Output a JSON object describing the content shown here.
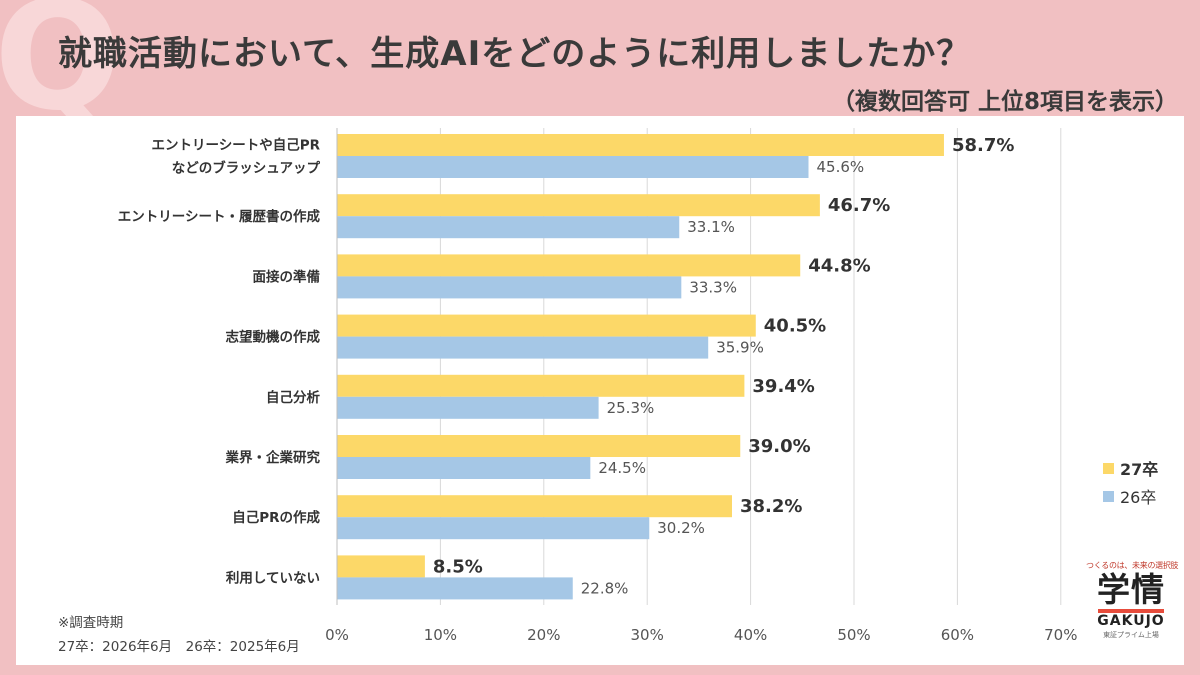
{
  "header": {
    "q_mark": "Q",
    "title": "就職活動において、生成AIをどのように利用しましたか？",
    "subtitle": "（複数回答可 上位8項目を表示）"
  },
  "colors": {
    "series1": "#fcd868",
    "series2": "#a5c7e6",
    "grid": "#d9d9d9",
    "accent": "#e74c3c"
  },
  "chart_data": {
    "type": "bar",
    "orientation": "horizontal",
    "categories": [
      [
        "エントリーシートや自己PR",
        "などのブラッシュアップ"
      ],
      [
        "エントリーシート・履歴書の作成"
      ],
      [
        "面接の準備"
      ],
      [
        "志望動機の作成"
      ],
      [
        "自己分析"
      ],
      [
        "業界・企業研究"
      ],
      [
        "自己PRの作成"
      ],
      [
        "利用していない"
      ]
    ],
    "series": [
      {
        "name": "27卒",
        "values": [
          58.7,
          46.7,
          44.8,
          40.5,
          39.4,
          39.0,
          38.2,
          8.5
        ],
        "color": "#fcd868"
      },
      {
        "name": "26卒",
        "values": [
          45.6,
          33.1,
          33.3,
          35.9,
          25.3,
          24.5,
          30.2,
          22.8
        ],
        "color": "#a5c7e6"
      }
    ],
    "xlim": [
      0,
      70
    ],
    "xticks": [
      "0%",
      "10%",
      "20%",
      "30%",
      "40%",
      "50%",
      "60%",
      "70%"
    ],
    "value_suffix": "%",
    "grid": true,
    "legend": "right"
  },
  "footnote": {
    "line1": "※調査時期",
    "line2": "27卒：2026年6月　26卒：2025年6月"
  },
  "logo": {
    "tagline": "つくるのは、未来の選択肢",
    "kanji": "学情",
    "word": "GAKUJO",
    "sub": "東証プライム上場"
  }
}
